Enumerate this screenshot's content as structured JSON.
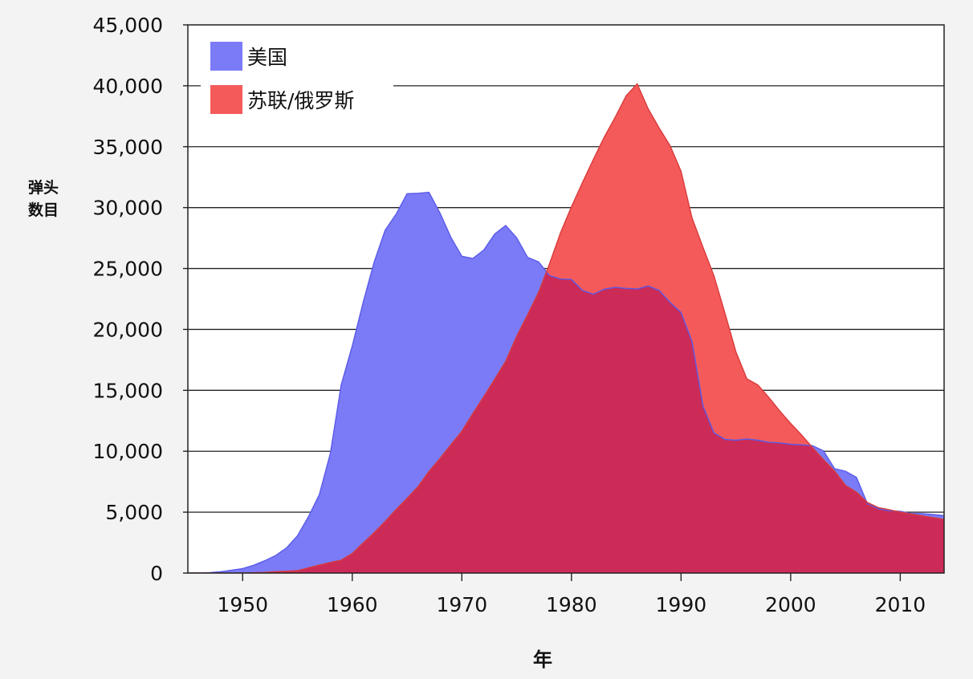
{
  "chart_data": {
    "type": "area",
    "xlabel": "年",
    "ylabel_lines": [
      "弹头",
      "数目"
    ],
    "xlim": [
      1945,
      2014
    ],
    "ylim": [
      0,
      45000
    ],
    "x_ticks": [
      {
        "value": 1950,
        "label": "1950"
      },
      {
        "value": 1960,
        "label": "1960"
      },
      {
        "value": 1970,
        "label": "1970"
      },
      {
        "value": 1980,
        "label": "1980"
      },
      {
        "value": 1990,
        "label": "1990"
      },
      {
        "value": 2000,
        "label": "2000"
      },
      {
        "value": 2010,
        "label": "2010"
      }
    ],
    "y_ticks": [
      {
        "value": 0,
        "label": "0"
      },
      {
        "value": 5000,
        "label": "5,000"
      },
      {
        "value": 10000,
        "label": "10,000"
      },
      {
        "value": 15000,
        "label": "15,000"
      },
      {
        "value": 20000,
        "label": "20,000"
      },
      {
        "value": 25000,
        "label": "25,000"
      },
      {
        "value": 30000,
        "label": "30,000"
      },
      {
        "value": 35000,
        "label": "35,000"
      },
      {
        "value": 40000,
        "label": "40,000"
      },
      {
        "value": 45000,
        "label": "45,000"
      }
    ],
    "grid": true,
    "legend_position": "top-left",
    "overlap_color": "#cc2b57",
    "series": [
      {
        "name": "美国",
        "color": "#7b7bf7",
        "points": [
          [
            1945,
            6
          ],
          [
            1946,
            11
          ],
          [
            1947,
            32
          ],
          [
            1948,
            110
          ],
          [
            1949,
            235
          ],
          [
            1950,
            369
          ],
          [
            1951,
            640
          ],
          [
            1952,
            1005
          ],
          [
            1953,
            1436
          ],
          [
            1954,
            2063
          ],
          [
            1955,
            3057
          ],
          [
            1956,
            4618
          ],
          [
            1957,
            6444
          ],
          [
            1958,
            9822
          ],
          [
            1959,
            15468
          ],
          [
            1960,
            18638
          ],
          [
            1961,
            22229
          ],
          [
            1962,
            25540
          ],
          [
            1963,
            28133
          ],
          [
            1964,
            29463
          ],
          [
            1965,
            31139
          ],
          [
            1966,
            31175
          ],
          [
            1967,
            31255
          ],
          [
            1968,
            29561
          ],
          [
            1969,
            27552
          ],
          [
            1970,
            26008
          ],
          [
            1971,
            25830
          ],
          [
            1972,
            26516
          ],
          [
            1973,
            27835
          ],
          [
            1974,
            28537
          ],
          [
            1975,
            27519
          ],
          [
            1976,
            25914
          ],
          [
            1977,
            25542
          ],
          [
            1978,
            24418
          ],
          [
            1979,
            24138
          ],
          [
            1980,
            24104
          ],
          [
            1981,
            23208
          ],
          [
            1982,
            22886
          ],
          [
            1983,
            23305
          ],
          [
            1984,
            23459
          ],
          [
            1985,
            23368
          ],
          [
            1986,
            23317
          ],
          [
            1987,
            23575
          ],
          [
            1988,
            23205
          ],
          [
            1989,
            22217
          ],
          [
            1990,
            21392
          ],
          [
            1991,
            19008
          ],
          [
            1992,
            13708
          ],
          [
            1993,
            11511
          ],
          [
            1994,
            10979
          ],
          [
            1995,
            10904
          ],
          [
            1996,
            11011
          ],
          [
            1997,
            10903
          ],
          [
            1998,
            10732
          ],
          [
            1999,
            10685
          ],
          [
            2000,
            10577
          ],
          [
            2001,
            10526
          ],
          [
            2002,
            10457
          ],
          [
            2003,
            10027
          ],
          [
            2004,
            8570
          ],
          [
            2005,
            8360
          ],
          [
            2006,
            7853
          ],
          [
            2007,
            5709
          ],
          [
            2008,
            5273
          ],
          [
            2009,
            5113
          ],
          [
            2010,
            5066
          ],
          [
            2011,
            4897
          ],
          [
            2012,
            4881
          ],
          [
            2013,
            4804
          ],
          [
            2014,
            4717
          ]
        ]
      },
      {
        "name": "苏联/俄罗斯",
        "color": "#f55a5a",
        "points": [
          [
            1945,
            0
          ],
          [
            1948,
            0
          ],
          [
            1949,
            1
          ],
          [
            1950,
            5
          ],
          [
            1951,
            25
          ],
          [
            1952,
            50
          ],
          [
            1953,
            120
          ],
          [
            1954,
            150
          ],
          [
            1955,
            200
          ],
          [
            1956,
            426
          ],
          [
            1957,
            660
          ],
          [
            1958,
            869
          ],
          [
            1959,
            1060
          ],
          [
            1960,
            1605
          ],
          [
            1961,
            2471
          ],
          [
            1962,
            3322
          ],
          [
            1963,
            4238
          ],
          [
            1964,
            5221
          ],
          [
            1965,
            6129
          ],
          [
            1966,
            7089
          ],
          [
            1967,
            8339
          ],
          [
            1968,
            9399
          ],
          [
            1969,
            10538
          ],
          [
            1970,
            11643
          ],
          [
            1971,
            13092
          ],
          [
            1972,
            14478
          ],
          [
            1973,
            15915
          ],
          [
            1974,
            17385
          ],
          [
            1975,
            19443
          ],
          [
            1976,
            21205
          ],
          [
            1977,
            23044
          ],
          [
            1978,
            25393
          ],
          [
            1979,
            27935
          ],
          [
            1980,
            30062
          ],
          [
            1981,
            32049
          ],
          [
            1982,
            33952
          ],
          [
            1983,
            35804
          ],
          [
            1984,
            37431
          ],
          [
            1985,
            39197
          ],
          [
            1986,
            40159
          ],
          [
            1987,
            38107
          ],
          [
            1988,
            36538
          ],
          [
            1989,
            35078
          ],
          [
            1990,
            32980
          ],
          [
            1991,
            29154
          ],
          [
            1992,
            26734
          ],
          [
            1993,
            24403
          ],
          [
            1994,
            21339
          ],
          [
            1995,
            18179
          ],
          [
            1996,
            15942
          ],
          [
            1997,
            15442
          ],
          [
            1998,
            14425
          ],
          [
            1999,
            13317
          ],
          [
            2000,
            12283
          ],
          [
            2001,
            11331
          ],
          [
            2002,
            10300
          ],
          [
            2003,
            9300
          ],
          [
            2004,
            8383
          ],
          [
            2005,
            7200
          ],
          [
            2006,
            6642
          ],
          [
            2007,
            5800
          ],
          [
            2008,
            5373
          ],
          [
            2009,
            5200
          ],
          [
            2010,
            5000
          ],
          [
            2011,
            4850
          ],
          [
            2012,
            4700
          ],
          [
            2013,
            4550
          ],
          [
            2014,
            4400
          ]
        ]
      }
    ]
  }
}
